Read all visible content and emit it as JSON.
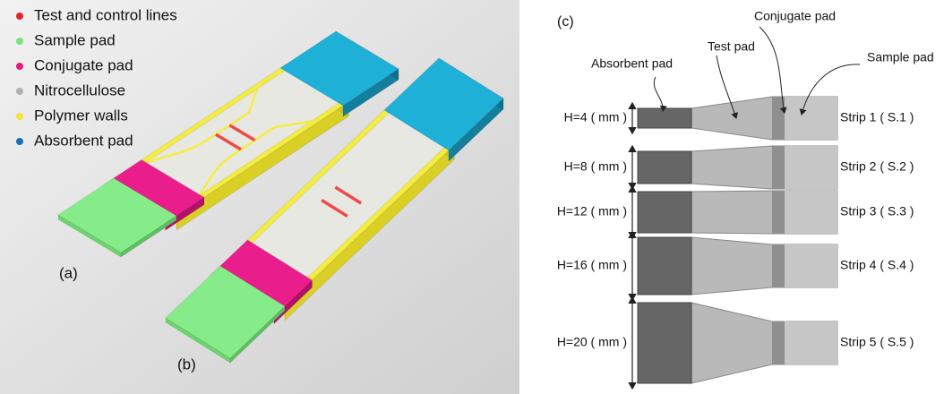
{
  "panel_ab": {
    "legend": [
      {
        "label": "Test and control lines",
        "color": "#e8202a"
      },
      {
        "label": "Sample pad",
        "color": "#7ee07f"
      },
      {
        "label": "Conjugate pad",
        "color": "#e8197f"
      },
      {
        "label": "Nitrocellulose",
        "color": "#b0b0b0"
      },
      {
        "label": "Polymer walls",
        "color": "#f2e43a"
      },
      {
        "label": "Absorbent pad",
        "color": "#1c6fb0"
      }
    ],
    "labels": [
      "(a)",
      "(b)"
    ]
  },
  "panel_c": {
    "label": "(c)",
    "pads": [
      "Absorbent pad",
      "Test pad",
      "Conjugate pad",
      "Sample pad"
    ],
    "strips": [
      {
        "height": "H=4 ( mm )",
        "name": "Strip 1 ( S.1 )"
      },
      {
        "height": "H=8 ( mm )",
        "name": "Strip 2 ( S.2 )"
      },
      {
        "height": "H=12 ( mm )",
        "name": "Strip 3 ( S.3 )"
      },
      {
        "height": "H=16 ( mm )",
        "name": "Strip 4 ( S.4 )"
      },
      {
        "height": "H=20 ( mm )",
        "name": "Strip 5 ( S.5 )"
      }
    ]
  }
}
